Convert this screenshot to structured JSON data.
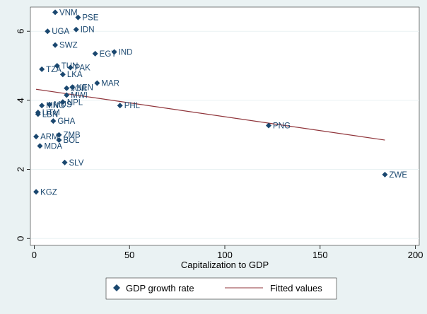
{
  "chart_data": {
    "type": "scatter",
    "title": "",
    "xlabel": "Capitalization to GDP",
    "ylabel": "",
    "xlim": [
      -2,
      202
    ],
    "ylim": [
      -0.2,
      6.7
    ],
    "xticks": [
      0,
      50,
      100,
      150,
      200
    ],
    "yticks": [
      0,
      2,
      4,
      6
    ],
    "grid": "horizontal",
    "legend_placement": "bottom",
    "legend": [
      {
        "label": "GDP growth rate",
        "marker": "diamond"
      },
      {
        "label": "Fitted values",
        "marker": "line"
      }
    ],
    "colors": {
      "background": "#eaf2f3",
      "plot_background": "#ffffff",
      "grid": "#eaf2f3",
      "marker": "#1a476f",
      "fit_line": "#90353b",
      "text": "#000000"
    },
    "series": [
      {
        "name": "GDP growth rate",
        "points": [
          {
            "label": "VNM",
            "x": 11,
            "y": 6.55
          },
          {
            "label": "PSE",
            "x": 23,
            "y": 6.4
          },
          {
            "label": "IDN",
            "x": 22,
            "y": 6.05
          },
          {
            "label": "UGA",
            "x": 7,
            "y": 6.0
          },
          {
            "label": "SWZ",
            "x": 11,
            "y": 5.6
          },
          {
            "label": "IND",
            "x": 42,
            "y": 5.4
          },
          {
            "label": "EGY",
            "x": 32,
            "y": 5.35
          },
          {
            "label": "PAK",
            "x": 19,
            "y": 4.95
          },
          {
            "label": "TUN",
            "x": 12,
            "y": 5.0
          },
          {
            "label": "TZA",
            "x": 4,
            "y": 4.9
          },
          {
            "label": "LKA",
            "x": 15,
            "y": 4.75
          },
          {
            "label": "MAR",
            "x": 33,
            "y": 4.5
          },
          {
            "label": "KEN",
            "x": 20,
            "y": 4.38
          },
          {
            "label": "JOR",
            "x": 17,
            "y": 4.35
          },
          {
            "label": "MWI",
            "x": 17,
            "y": 4.15
          },
          {
            "label": "NPL",
            "x": 15,
            "y": 3.95
          },
          {
            "label": "MUS",
            "x": 8,
            "y": 3.88
          },
          {
            "label": "MNG",
            "x": 4,
            "y": 3.85
          },
          {
            "label": "PHL",
            "x": 45,
            "y": 3.85
          },
          {
            "label": "UTM",
            "x": 2,
            "y": 3.65
          },
          {
            "label": "LBN",
            "x": 2,
            "y": 3.6
          },
          {
            "label": "GHA",
            "x": 10,
            "y": 3.4
          },
          {
            "label": "PNG",
            "x": 123,
            "y": 3.27
          },
          {
            "label": "ZMB",
            "x": 13,
            "y": 3.0
          },
          {
            "label": "ARM",
            "x": 1,
            "y": 2.95
          },
          {
            "label": "BOL",
            "x": 13,
            "y": 2.85
          },
          {
            "label": "MDA",
            "x": 3,
            "y": 2.68
          },
          {
            "label": "SLV",
            "x": 16,
            "y": 2.2
          },
          {
            "label": "ZWE",
            "x": 184,
            "y": 1.85
          },
          {
            "label": "KGZ",
            "x": 1,
            "y": 1.35
          }
        ]
      },
      {
        "name": "Fitted values",
        "type": "line",
        "x": [
          1,
          184
        ],
        "y": [
          4.32,
          2.85
        ]
      }
    ]
  }
}
